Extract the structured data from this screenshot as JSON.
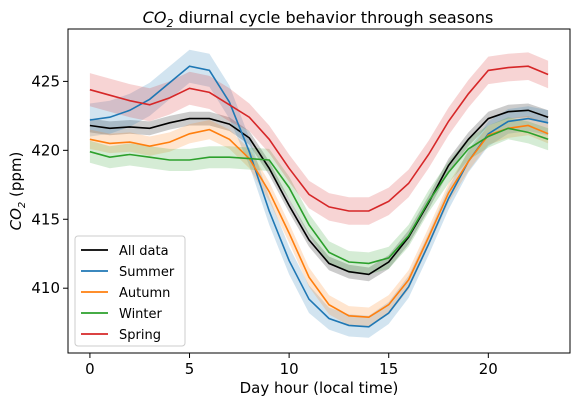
{
  "chart_data": {
    "type": "line",
    "title_main": "CO",
    "title_sub": "2",
    "title_rest": " diurnal cycle behavior through seasons",
    "xlabel": "Day hour (local time)",
    "ylabel_main": "CO",
    "ylabel_sub": "2",
    "ylabel_rest": " (ppm)",
    "xlim": [
      -1.1,
      24.1
    ],
    "ylim": [
      405.3,
      428.8
    ],
    "xticks": [
      0,
      5,
      10,
      15,
      20
    ],
    "yticks": [
      410,
      415,
      420,
      425
    ],
    "grid": false,
    "legend_position": "lower-left",
    "x": [
      0,
      1,
      2,
      3,
      4,
      5,
      6,
      7,
      8,
      9,
      10,
      11,
      12,
      13,
      14,
      15,
      16,
      17,
      18,
      19,
      20,
      21,
      22,
      23
    ],
    "series": [
      {
        "name": "All data",
        "color": "#000000",
        "values": [
          421.8,
          421.6,
          421.7,
          421.6,
          422.0,
          422.3,
          422.3,
          421.9,
          420.9,
          418.7,
          416.0,
          413.5,
          411.8,
          411.2,
          411.0,
          411.9,
          413.7,
          416.2,
          418.9,
          420.8,
          422.3,
          422.8,
          422.9,
          422.4
        ],
        "band": [
          0.5,
          0.5,
          0.5,
          0.5,
          0.5,
          0.5,
          0.5,
          0.5,
          0.5,
          0.5,
          0.5,
          0.5,
          0.5,
          0.5,
          0.5,
          0.5,
          0.5,
          0.5,
          0.5,
          0.5,
          0.5,
          0.5,
          0.5,
          0.5
        ]
      },
      {
        "name": "Summer",
        "color": "#1f77b4",
        "values": [
          422.2,
          422.4,
          422.9,
          423.7,
          424.9,
          426.1,
          425.8,
          423.5,
          419.9,
          415.6,
          412.0,
          409.2,
          407.8,
          407.3,
          407.2,
          408.2,
          410.1,
          413.2,
          416.5,
          419.2,
          421.2,
          422.1,
          422.3,
          422.0
        ],
        "band": [
          1.2,
          1.2,
          1.2,
          1.2,
          1.2,
          1.2,
          1.2,
          1.2,
          1.0,
          1.0,
          1.0,
          1.0,
          0.8,
          0.8,
          0.8,
          0.8,
          0.8,
          0.8,
          0.8,
          0.8,
          0.9,
          0.9,
          0.9,
          0.9
        ]
      },
      {
        "name": "Autumn",
        "color": "#ff7f0e",
        "values": [
          420.8,
          420.5,
          420.6,
          420.3,
          420.6,
          421.2,
          421.5,
          420.8,
          419.4,
          417.0,
          414.0,
          410.8,
          408.8,
          408.0,
          407.9,
          408.8,
          410.6,
          413.7,
          416.9,
          419.2,
          421.1,
          421.6,
          421.8,
          421.2
        ],
        "band": [
          0.7,
          0.7,
          0.7,
          0.7,
          0.7,
          0.7,
          0.7,
          0.7,
          0.7,
          0.7,
          0.7,
          0.7,
          0.7,
          0.7,
          0.7,
          0.7,
          0.7,
          0.7,
          0.7,
          0.7,
          0.7,
          0.7,
          0.7,
          0.7
        ]
      },
      {
        "name": "Winter",
        "color": "#2ca02c",
        "values": [
          419.9,
          419.5,
          419.7,
          419.5,
          419.3,
          419.3,
          419.5,
          419.5,
          419.4,
          419.3,
          417.3,
          414.6,
          412.6,
          411.9,
          411.8,
          412.2,
          413.8,
          416.3,
          418.4,
          420.1,
          421.0,
          421.6,
          421.3,
          420.8
        ],
        "band": [
          0.8,
          0.8,
          0.8,
          0.8,
          0.8,
          0.8,
          0.8,
          0.8,
          0.8,
          0.8,
          0.8,
          0.8,
          0.8,
          0.8,
          0.8,
          0.8,
          0.8,
          0.8,
          0.8,
          0.8,
          0.8,
          0.8,
          0.8,
          0.8
        ]
      },
      {
        "name": "Spring",
        "color": "#d62728",
        "values": [
          424.4,
          424.0,
          423.6,
          423.3,
          423.8,
          424.5,
          424.2,
          423.3,
          422.4,
          420.8,
          418.7,
          416.8,
          415.9,
          415.6,
          415.6,
          416.3,
          417.6,
          419.7,
          422.1,
          424.1,
          425.8,
          426.0,
          426.1,
          425.5
        ],
        "band": [
          1.2,
          1.2,
          1.2,
          1.2,
          1.2,
          1.2,
          1.2,
          1.2,
          1.0,
          1.0,
          1.0,
          1.0,
          1.0,
          1.0,
          1.0,
          1.0,
          1.0,
          1.0,
          1.0,
          1.0,
          1.0,
          1.0,
          1.0,
          1.0
        ]
      }
    ]
  }
}
